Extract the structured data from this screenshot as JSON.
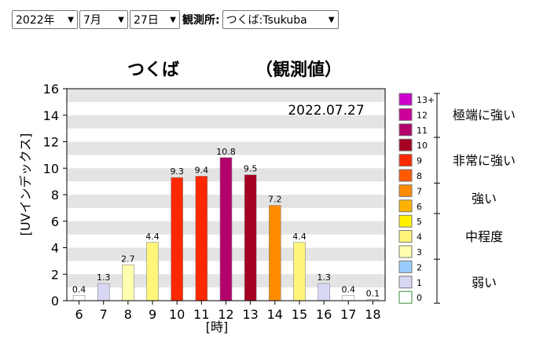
{
  "controls": {
    "year": "2022年",
    "month": "7月",
    "day": "27日",
    "station_label": "観測所:",
    "station": "つくば:Tsukuba"
  },
  "chart_data": {
    "type": "bar",
    "title_station": "つくば",
    "title_kind": "（観測値）",
    "date": "2022.07.27",
    "xlabel": "[時]",
    "ylabel": "[UVインデックス]",
    "ylim": [
      0,
      16
    ],
    "yticks": [
      0,
      2,
      4,
      6,
      8,
      10,
      12,
      14,
      16
    ],
    "grid": "horizontal bands",
    "categories": [
      "6",
      "7",
      "8",
      "9",
      "10",
      "11",
      "12",
      "13",
      "14",
      "15",
      "16",
      "17",
      "18"
    ],
    "values": [
      0.4,
      1.3,
      2.7,
      4.4,
      9.3,
      9.4,
      10.8,
      9.5,
      7.2,
      4.4,
      1.3,
      0.4,
      0.1
    ],
    "value_labels": [
      "0.4",
      "1.3",
      "2.7",
      "4.4",
      "9.3",
      "9.4",
      "10.8",
      "9.5",
      "7.2",
      "4.4",
      "1.3",
      "0.4",
      "0.1"
    ],
    "legend": {
      "placement": "right",
      "levels": [
        {
          "label": "13+",
          "color": "#cc00cc"
        },
        {
          "label": "12",
          "color": "#cc0099"
        },
        {
          "label": "11",
          "color": "#b3006b"
        },
        {
          "label": "10",
          "color": "#a50021"
        },
        {
          "label": "9",
          "color": "#ff2800"
        },
        {
          "label": "8",
          "color": "#ff5a00"
        },
        {
          "label": "7",
          "color": "#ff8c00"
        },
        {
          "label": "6",
          "color": "#ffb300"
        },
        {
          "label": "5",
          "color": "#fff200"
        },
        {
          "label": "4",
          "color": "#fff57a"
        },
        {
          "label": "3",
          "color": "#ffffb0"
        },
        {
          "label": "2",
          "color": "#99ccff"
        },
        {
          "label": "1",
          "color": "#d8d8f5"
        },
        {
          "label": "0",
          "color": "#ffffff"
        }
      ],
      "categories": [
        {
          "label": "極端に強い",
          "from": 11,
          "to": 13
        },
        {
          "label": "非常に強い",
          "from": 8,
          "to": 10
        },
        {
          "label": "強い",
          "from": 6,
          "to": 7
        },
        {
          "label": "中程度",
          "from": 3,
          "to": 5
        },
        {
          "label": "弱い",
          "from": 0,
          "to": 2
        }
      ]
    }
  }
}
